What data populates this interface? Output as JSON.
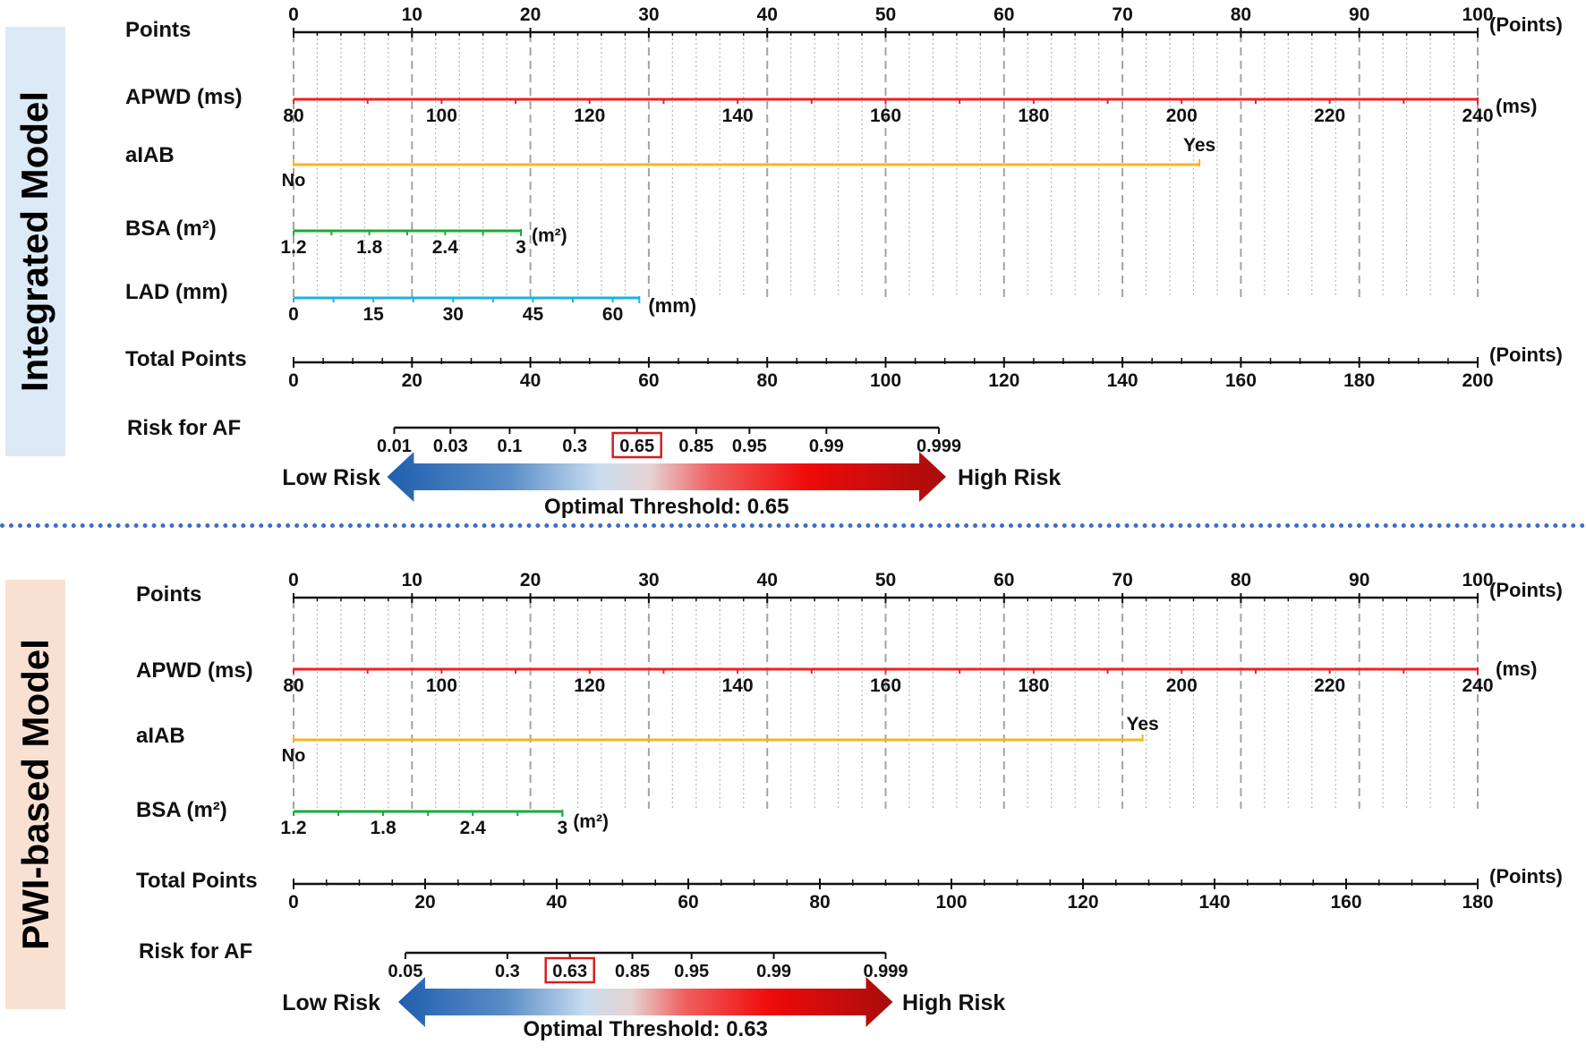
{
  "colors": {
    "apwd": "#ee2020",
    "alab": "#f5b522",
    "bsa": "#1aab3c",
    "lad": "#1ab2e8",
    "axis": "#111111",
    "grid": "#9a9a9a",
    "threshold_box": "#d42020",
    "low_risk": "#1f5fae",
    "high_risk": "#a70d0d"
  },
  "chart_data": [
    {
      "type": "nomogram",
      "panel_label": "Integrated Model",
      "rows": [
        {
          "id": "points",
          "label": "Points",
          "range": [
            0,
            100
          ],
          "ticks": [
            0,
            10,
            20,
            30,
            40,
            50,
            60,
            70,
            80,
            90,
            100
          ],
          "unit": "(Points)"
        },
        {
          "id": "apwd",
          "label": "APWD (ms)",
          "variable_range": [
            80,
            240
          ],
          "points_range": [
            0,
            100
          ],
          "ticks": [
            80,
            100,
            120,
            140,
            160,
            180,
            200,
            220,
            240
          ],
          "unit": "(ms)"
        },
        {
          "id": "alab",
          "label": "aIAB",
          "categories": [
            {
              "label": "No",
              "points": 0
            },
            {
              "label": "Yes",
              "points": 76.5
            }
          ]
        },
        {
          "id": "bsa",
          "label": "BSA (m²)",
          "variable_range": [
            1.2,
            3
          ],
          "points_range": [
            0,
            19.2
          ],
          "ticks": [
            1.2,
            1.8,
            2.4,
            3
          ],
          "unit": "(m²)"
        },
        {
          "id": "lad",
          "label": "LAD (mm)",
          "variable_range": [
            0,
            65
          ],
          "points_range": [
            0,
            29.2
          ],
          "ticks": [
            0,
            15,
            30,
            45,
            60
          ],
          "unit": "(mm)"
        },
        {
          "id": "total",
          "label": "Total Points",
          "range": [
            0,
            200
          ],
          "ticks": [
            0,
            20,
            40,
            60,
            80,
            100,
            120,
            140,
            160,
            180,
            200
          ],
          "unit": "(Points)"
        }
      ],
      "risk": {
        "label": "Risk for AF",
        "ticks": [
          {
            "label": "0.01",
            "total_points": 17
          },
          {
            "label": "0.03",
            "total_points": 26.5
          },
          {
            "label": "0.1",
            "total_points": 36.5
          },
          {
            "label": "0.3",
            "total_points": 47.5
          },
          {
            "label": "0.65",
            "total_points": 58
          },
          {
            "label": "0.85",
            "total_points": 68
          },
          {
            "label": "0.95",
            "total_points": 77
          },
          {
            "label": "0.99",
            "total_points": 90
          },
          {
            "label": "0.999",
            "total_points": 109
          }
        ],
        "threshold_label": "0.65",
        "low_label": "Low Risk",
        "high_label": "High Risk",
        "optimal_text": "Optimal  Threshold:  0.65"
      }
    },
    {
      "type": "nomogram",
      "panel_label": "PWI-based Model",
      "rows": [
        {
          "id": "points",
          "label": "Points",
          "range": [
            0,
            100
          ],
          "ticks": [
            0,
            10,
            20,
            30,
            40,
            50,
            60,
            70,
            80,
            90,
            100
          ],
          "unit": "(Points)"
        },
        {
          "id": "apwd",
          "label": "APWD (ms)",
          "variable_range": [
            80,
            240
          ],
          "points_range": [
            0,
            100
          ],
          "ticks": [
            80,
            100,
            120,
            140,
            160,
            180,
            200,
            220,
            240
          ],
          "unit": "(ms)"
        },
        {
          "id": "alab",
          "label": "aIAB",
          "categories": [
            {
              "label": "No",
              "points": 0
            },
            {
              "label": "Yes",
              "points": 71.7
            }
          ]
        },
        {
          "id": "bsa",
          "label": "BSA (m²)",
          "variable_range": [
            1.2,
            3
          ],
          "points_range": [
            0,
            22.7
          ],
          "ticks": [
            1.2,
            1.8,
            2.4,
            3
          ],
          "unit": "(m²)"
        }
      ],
      "total": {
        "label": "Total Points",
        "range": [
          0,
          180
        ],
        "ticks": [
          0,
          20,
          40,
          60,
          80,
          100,
          120,
          140,
          160,
          180
        ],
        "unit": "(Points)"
      },
      "risk": {
        "label": "Risk for AF",
        "ticks": [
          {
            "label": "0.05",
            "total_points": 17
          },
          {
            "label": "0.3",
            "total_points": 32.5
          },
          {
            "label": "0.63",
            "total_points": 42
          },
          {
            "label": "0.85",
            "total_points": 51.5
          },
          {
            "label": "0.95",
            "total_points": 60.5
          },
          {
            "label": "0.99",
            "total_points": 73
          },
          {
            "label": "0.999",
            "total_points": 90
          }
        ],
        "threshold_label": "0.63",
        "low_label": "Low Risk",
        "high_label": "High Risk",
        "optimal_text": "Optimal  Threshold:  0.63"
      }
    }
  ]
}
